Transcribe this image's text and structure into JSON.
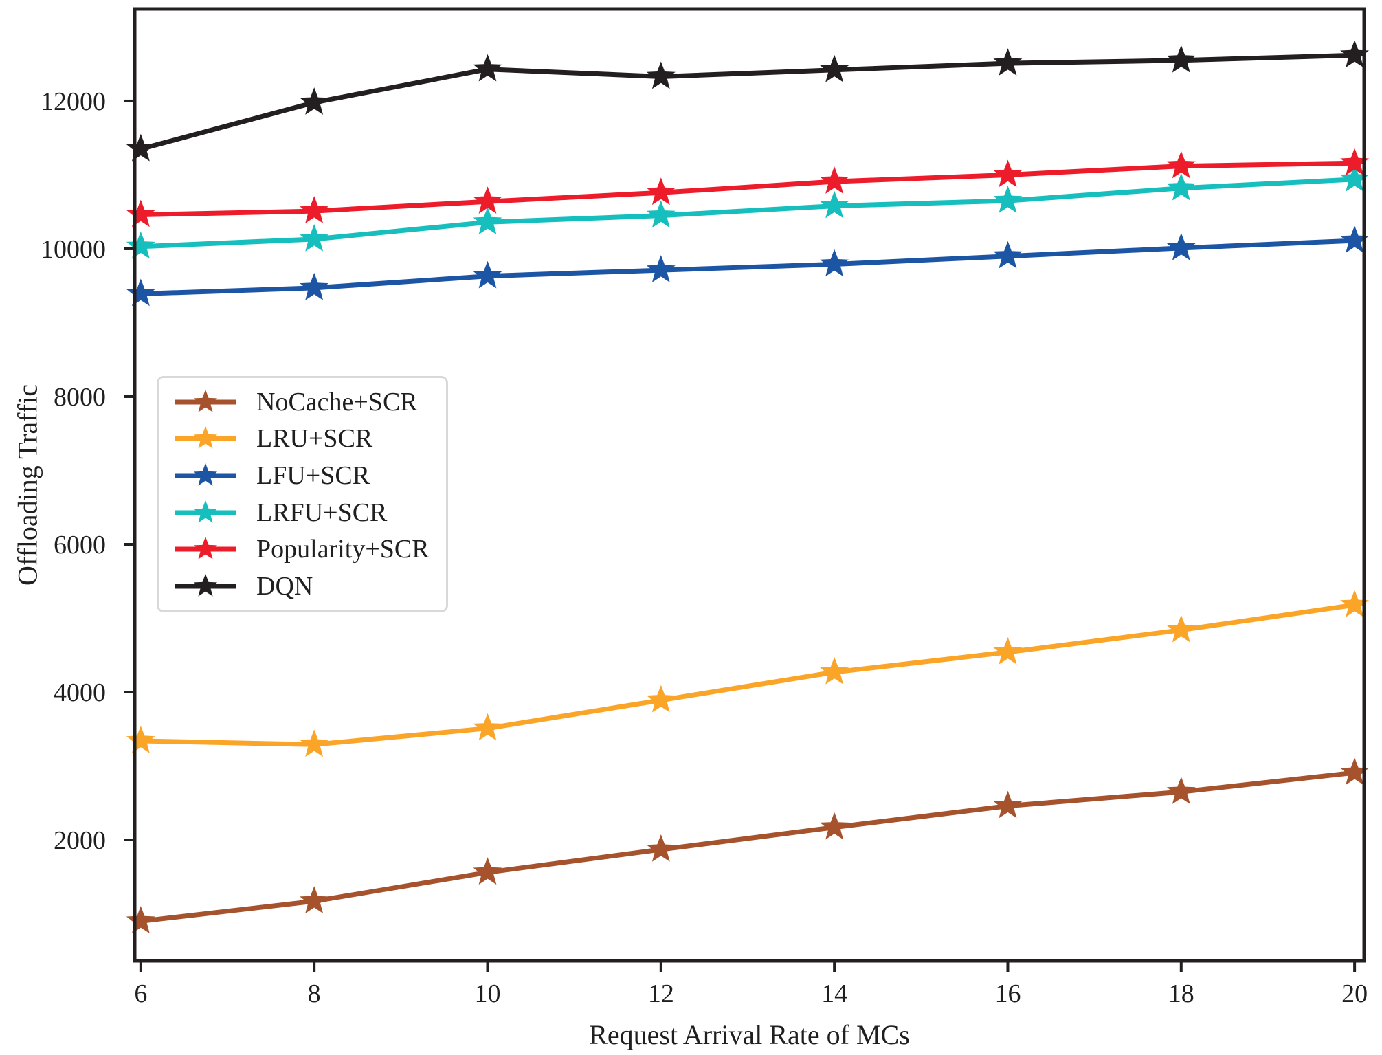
{
  "figure": {
    "background": "#ffffff",
    "text_color": "#1f1f1f",
    "axis_color": "#231f20"
  },
  "chart_data": {
    "type": "line",
    "title": "",
    "xlabel": "Request Arrival Rate of MCs",
    "ylabel": "Offloading Traffic",
    "x": [
      6,
      8,
      10,
      12,
      14,
      16,
      18,
      20
    ],
    "x_ticks": [
      "6",
      "8",
      "10",
      "12",
      "14",
      "16",
      "18",
      "20"
    ],
    "y_ticks": [
      2000,
      4000,
      6000,
      8000,
      10000,
      12000
    ],
    "y_tick_labels": [
      "2000",
      "4000",
      "6000",
      "8000",
      "10000",
      "12000"
    ],
    "xlim": [
      5.93,
      20.11
    ],
    "ylim": [
      363,
      13246
    ],
    "grid": false,
    "marker": "star",
    "legend_position": "center-left",
    "series": [
      {
        "name": "NoCache+SCR",
        "color": "#A5522D",
        "marker": "star",
        "values": [
          900,
          1170,
          1560,
          1870,
          2170,
          2460,
          2650,
          2910
        ]
      },
      {
        "name": "LRU+SCR",
        "color": "#FAA528",
        "marker": "star",
        "values": [
          3340,
          3290,
          3510,
          3890,
          4270,
          4540,
          4840,
          5180
        ]
      },
      {
        "name": "LFU+SCR",
        "color": "#1D55A5",
        "marker": "star",
        "values": [
          9390,
          9470,
          9630,
          9710,
          9790,
          9900,
          10010,
          10110
        ]
      },
      {
        "name": "LRFU+SCR",
        "color": "#17BEBE",
        "marker": "star",
        "values": [
          10030,
          10130,
          10360,
          10450,
          10580,
          10650,
          10820,
          10940
        ]
      },
      {
        "name": "Popularity+SCR",
        "color": "#EC1C2B",
        "marker": "star",
        "values": [
          10460,
          10510,
          10640,
          10760,
          10910,
          11000,
          11120,
          11160
        ]
      },
      {
        "name": "DQN",
        "color": "#231F20",
        "marker": "star",
        "values": [
          11350,
          11980,
          12430,
          12330,
          12420,
          12510,
          12550,
          12620
        ]
      }
    ]
  }
}
